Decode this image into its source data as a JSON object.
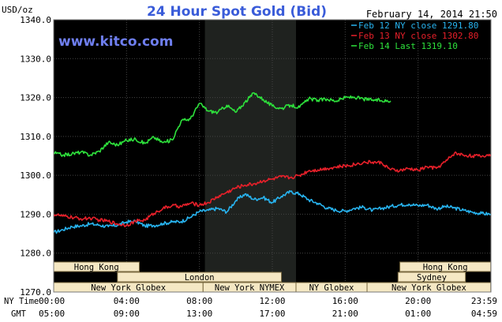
{
  "chart_data": {
    "type": "line",
    "title": "24 Hour Spot Gold (Bid)",
    "watermark": "www.kitco.com",
    "date_label": "February 14, 2014 21:50",
    "ylabel": "USD/oz",
    "ylim": [
      1270,
      1340
    ],
    "yticks": [
      "1340.0",
      "1330.0",
      "1320.0",
      "1310.0",
      "1300.0",
      "1290.0",
      "1280.0",
      "1270.0"
    ],
    "xlim": [
      0,
      24
    ],
    "x_axis_rows": [
      {
        "label": "NY Time",
        "ticks": [
          "00:00",
          "04:00",
          "08:00",
          "12:00",
          "16:00",
          "20:00",
          "23:59"
        ]
      },
      {
        "label": "GMT",
        "ticks": [
          "05:00",
          "09:00",
          "13:00",
          "17:00",
          "21:00",
          "01:00",
          "04:59"
        ]
      }
    ],
    "colors": {
      "background": "#000000",
      "grid": "#444444",
      "title": "#3a5cd9",
      "watermark": "#6f7ff0",
      "feb12": "#28b4f0",
      "feb13": "#e8202a",
      "feb14": "#2ee23c",
      "session_box": "#f5e8c4",
      "nymex_shade": "#1f221f"
    },
    "legend": [
      {
        "text": "Feb 12 NY close 1291.80",
        "color": "#28b4f0"
      },
      {
        "text": "Feb 13 NY close 1302.80",
        "color": "#e8202a"
      },
      {
        "text": "Feb 14 Last 1319.10",
        "color": "#2ee23c"
      }
    ],
    "sessions": [
      {
        "label": "Hong Kong",
        "start": 0,
        "end": 4.7,
        "row": 0
      },
      {
        "label": "London",
        "start": 3.5,
        "end": 12.5,
        "row": 1
      },
      {
        "label": "New York Globex",
        "start": 0,
        "end": 8.2,
        "row": 2
      },
      {
        "label": "New York NYMEX",
        "start": 8.2,
        "end": 13.3,
        "row": 2
      },
      {
        "label": "NY Globex",
        "start": 13.3,
        "end": 17.2,
        "row": 2
      },
      {
        "label": "Hong Kong",
        "start": 19,
        "end": 23.99,
        "row": 0
      },
      {
        "label": "Sydney",
        "start": 18.9,
        "end": 22.6,
        "row": 1
      },
      {
        "label": "New York Globex",
        "start": 17.2,
        "end": 23.99,
        "row": 2
      }
    ],
    "nymex_window": [
      8.3,
      13.3
    ],
    "series": [
      {
        "key": "feb12",
        "color": "#28b4f0",
        "x": [
          0,
          0.5,
          1,
          1.5,
          2,
          2.5,
          3,
          3.5,
          4,
          4.5,
          5,
          5.5,
          6,
          6.5,
          7,
          7.5,
          8,
          8.5,
          9,
          9.5,
          10,
          10.5,
          11,
          11.5,
          12,
          12.5,
          13,
          13.5,
          14,
          14.5,
          15,
          15.5,
          16,
          16.5,
          17,
          17.5,
          18,
          18.5,
          19,
          19.5,
          20,
          20.5,
          21,
          21.5,
          22,
          22.5,
          23,
          23.5,
          24
        ],
        "values": [
          1285.3,
          1286,
          1286.8,
          1287,
          1287.5,
          1287.2,
          1286.8,
          1287.2,
          1288,
          1288.2,
          1287,
          1287.1,
          1287.6,
          1288,
          1288.1,
          1289.2,
          1290.7,
          1291,
          1291.5,
          1290.6,
          1293.5,
          1295.2,
          1293.8,
          1294.3,
          1293,
          1294.6,
          1295.8,
          1295.2,
          1293.7,
          1292.8,
          1291.6,
          1291,
          1290.8,
          1291.5,
          1291.8,
          1291,
          1291.5,
          1292,
          1292.4,
          1292.6,
          1292.2,
          1292.4,
          1291.4,
          1292,
          1291.6,
          1291,
          1290.5,
          1290.2,
          1290
        ]
      },
      {
        "key": "feb13",
        "color": "#e8202a",
        "x": [
          0,
          0.5,
          1,
          1.5,
          2,
          2.5,
          3,
          3.5,
          4,
          4.5,
          5,
          5.5,
          6,
          6.5,
          7,
          7.5,
          8,
          8.5,
          9,
          9.5,
          10,
          10.5,
          11,
          11.5,
          12,
          12.5,
          13,
          13.5,
          14,
          14.5,
          15,
          15.5,
          16,
          16.5,
          17,
          17.5,
          18,
          18.5,
          19,
          19.5,
          20,
          20.5,
          21,
          21.5,
          22,
          22.5,
          23,
          23.5,
          24
        ],
        "values": [
          1290,
          1289.5,
          1289.2,
          1288.8,
          1289,
          1288.5,
          1288.2,
          1287.5,
          1287.2,
          1288.2,
          1288.5,
          1290.2,
          1291.5,
          1292.2,
          1292,
          1292.8,
          1292.4,
          1293,
          1294.5,
          1295.6,
          1296.8,
          1297.5,
          1297.8,
          1298.6,
          1299,
          1299.6,
          1299.4,
          1300,
          1301.2,
          1301.4,
          1301.8,
          1302.1,
          1302.4,
          1302.8,
          1303.3,
          1303.4,
          1303.2,
          1301.4,
          1301.2,
          1301.7,
          1301.3,
          1302.2,
          1301.8,
          1303.5,
          1305.7,
          1305.2,
          1305,
          1304.9,
          1305.4
        ]
      },
      {
        "key": "feb14",
        "color": "#2ee23c",
        "x": [
          0,
          0.5,
          1,
          1.5,
          2,
          2.5,
          3,
          3.5,
          4,
          4.5,
          5,
          5.5,
          6,
          6.5,
          7,
          7.5,
          8,
          8.5,
          9,
          9.5,
          10,
          10.5,
          11,
          11.5,
          12,
          12.5,
          13,
          13.5,
          14,
          14.5,
          15,
          15.5,
          16,
          16.5,
          17,
          17.5,
          18,
          18.5
        ],
        "values": [
          1305.8,
          1305.2,
          1305.5,
          1306,
          1305.2,
          1306.2,
          1308.5,
          1307.8,
          1309,
          1309.3,
          1308.2,
          1309.8,
          1308.4,
          1309.1,
          1314,
          1314.5,
          1318.5,
          1316.5,
          1316.2,
          1318,
          1316.2,
          1318.8,
          1321.2,
          1319.5,
          1317.8,
          1317.2,
          1318,
          1317.5,
          1319.7,
          1319.3,
          1319.6,
          1319.1,
          1320,
          1320.1,
          1319.6,
          1319.4,
          1319.2,
          1319.1
        ]
      }
    ]
  }
}
